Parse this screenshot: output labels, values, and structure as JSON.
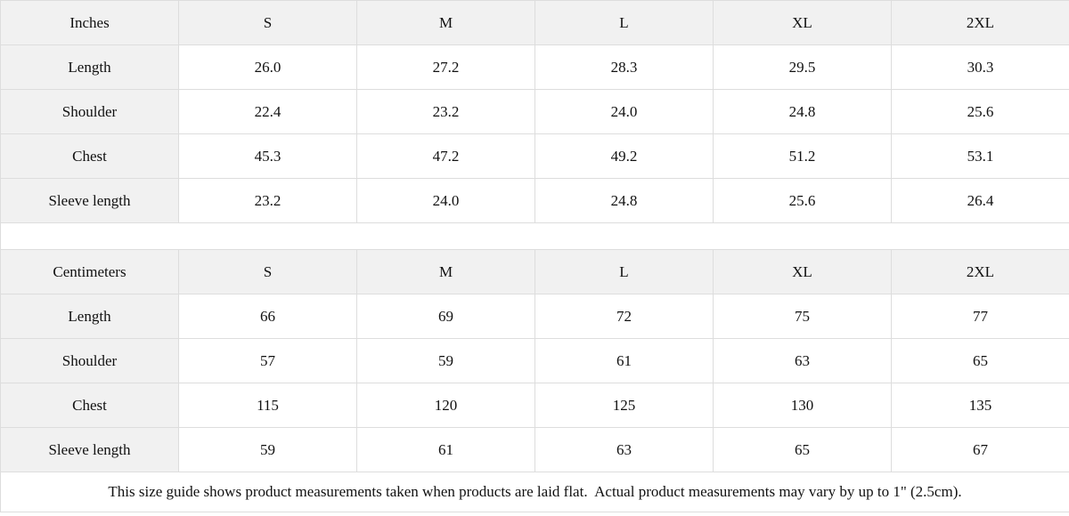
{
  "colors": {
    "header_bg": "#f1f1f1",
    "border": "#dddddd",
    "text": "#111111",
    "background": "#ffffff"
  },
  "inches": {
    "unit": "Inches",
    "sizes": [
      "S",
      "M",
      "L",
      "XL",
      "2XL"
    ],
    "rows": [
      {
        "label": "Length",
        "values": [
          "26.0",
          "27.2",
          "28.3",
          "29.5",
          "30.3"
        ]
      },
      {
        "label": "Shoulder",
        "values": [
          "22.4",
          "23.2",
          "24.0",
          "24.8",
          "25.6"
        ]
      },
      {
        "label": "Chest",
        "values": [
          "45.3",
          "47.2",
          "49.2",
          "51.2",
          "53.1"
        ]
      },
      {
        "label": "Sleeve length",
        "values": [
          "23.2",
          "24.0",
          "24.8",
          "25.6",
          "26.4"
        ]
      }
    ]
  },
  "centimeters": {
    "unit": "Centimeters",
    "sizes": [
      "S",
      "M",
      "L",
      "XL",
      "2XL"
    ],
    "rows": [
      {
        "label": "Length",
        "values": [
          "66",
          "69",
          "72",
          "75",
          "77"
        ]
      },
      {
        "label": "Shoulder",
        "values": [
          "57",
          "59",
          "61",
          "63",
          "65"
        ]
      },
      {
        "label": "Chest",
        "values": [
          "115",
          "120",
          "125",
          "130",
          "135"
        ]
      },
      {
        "label": "Sleeve length",
        "values": [
          "59",
          "61",
          "63",
          "65",
          "67"
        ]
      }
    ]
  },
  "footnote": {
    "text": "This size guide shows product measurements taken when products are laid flat.  Actual product measurements may vary by up to 1\" (2.5cm)."
  }
}
